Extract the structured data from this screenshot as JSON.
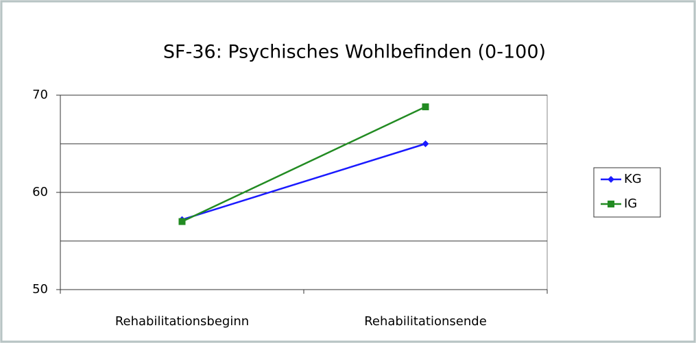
{
  "chart_data": {
    "type": "line",
    "title": "SF-36: Psychisches Wohlbefinden (0-100)",
    "categories": [
      "Rehabilitationsbeginn",
      "Rehabilitationsende"
    ],
    "series": [
      {
        "name": "KG",
        "color": "#1a1aff",
        "marker": "diamond",
        "values": [
          57.2,
          65.0
        ]
      },
      {
        "name": "IG",
        "color": "#228b22",
        "marker": "square",
        "values": [
          57.0,
          68.8
        ]
      }
    ],
    "ylim": [
      50,
      70
    ],
    "yticks": [
      50,
      60,
      70
    ],
    "yminorticks": [
      55,
      65
    ],
    "grid": true,
    "legend": "right"
  }
}
